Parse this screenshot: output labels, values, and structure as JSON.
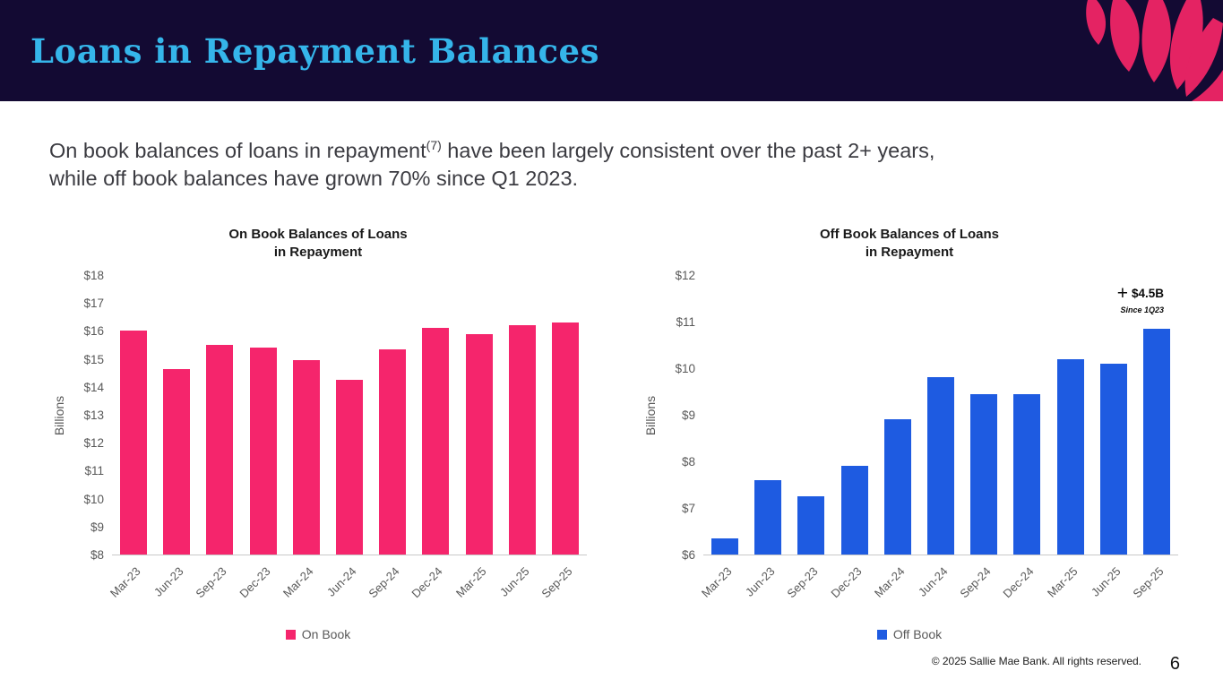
{
  "header": {
    "title": "Loans in Repayment Balances",
    "graphic_name": "raspberry-petals-graphic"
  },
  "paragraph": {
    "line1_before_sup": "On book balances of loans in repayment",
    "sup": "(7)",
    "line1_after_sup": " have been largely consistent over the past 2+ years,",
    "line2": "while off book balances have grown 70% since Q1 2023."
  },
  "colors": {
    "header_bg": "#130A33",
    "title_text": "#35B5EA",
    "on_book_pink": "#F5256C",
    "off_book_blue": "#1E5BE1",
    "raspberry_pink": "#E42363",
    "axis_text": "#595959"
  },
  "chart_data": [
    {
      "type": "bar",
      "title": "On Book Balances of Loans in Repayment",
      "title_lines": [
        "On Book Balances of Loans",
        "in Repayment"
      ],
      "ylabel": "Billions",
      "xlabel": "",
      "categories": [
        "Mar-23",
        "Jun-23",
        "Sep-23",
        "Dec-23",
        "Mar-24",
        "Jun-24",
        "Sep-24",
        "Dec-24",
        "Mar-25",
        "Jun-25",
        "Sep-25"
      ],
      "values": [
        16.0,
        14.65,
        15.5,
        15.4,
        14.95,
        14.25,
        15.35,
        16.1,
        15.9,
        16.2,
        16.3
      ],
      "ylim": [
        8,
        18
      ],
      "ytick_labels": [
        "$18",
        "$17",
        "$16",
        "$15",
        "$14",
        "$13",
        "$12",
        "$11",
        "$10",
        "$9",
        "$8"
      ],
      "bar_color": "#F5256C",
      "legend": "On Book",
      "legend_position": "bottom",
      "grid": false
    },
    {
      "type": "bar",
      "title": "Off Book Balances of Loans in Repayment",
      "title_lines": [
        "Off Book Balances of Loans",
        "in Repayment"
      ],
      "ylabel": "Billions",
      "xlabel": "",
      "categories": [
        "Mar-23",
        "Jun-23",
        "Sep-23",
        "Dec-23",
        "Mar-24",
        "Jun-24",
        "Sep-24",
        "Dec-24",
        "Mar-25",
        "Jun-25",
        "Sep-25"
      ],
      "values": [
        6.35,
        7.6,
        7.25,
        7.9,
        8.9,
        9.8,
        9.45,
        9.45,
        10.2,
        10.1,
        10.85
      ],
      "ylim": [
        6,
        12
      ],
      "ytick_labels": [
        "$12",
        "$11",
        "$10",
        "$9",
        "$8",
        "$7",
        "$6"
      ],
      "bar_color": "#1E5BE1",
      "legend": "Off Book",
      "legend_position": "bottom",
      "grid": false,
      "annotation": {
        "plus": "+",
        "value": "$4.5B",
        "caption": "Since 1Q23"
      }
    }
  ],
  "footer": {
    "copyright": "© 2025 Sallie Mae Bank. All rights reserved.",
    "page_number": "6"
  }
}
